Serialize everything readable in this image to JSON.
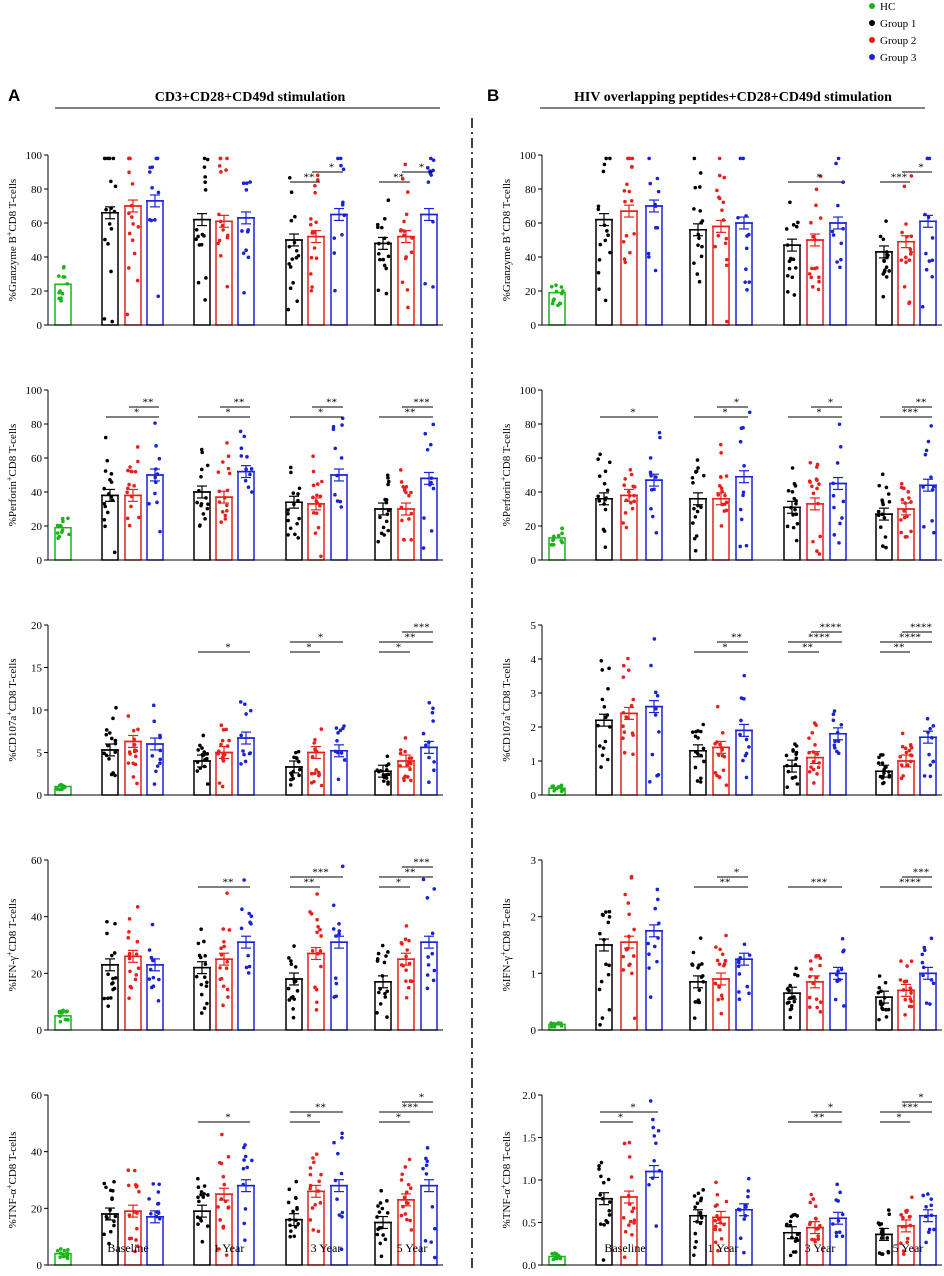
{
  "legend": [
    {
      "name": "HC",
      "color": "#18b418"
    },
    {
      "name": "Group 1",
      "color": "#000000"
    },
    {
      "name": "Group 2",
      "color": "#e8201c"
    },
    {
      "name": "Group 3",
      "color": "#1a22d8"
    }
  ],
  "panels": [
    {
      "letter": "A",
      "title": "CD3+CD28+CD49d stimulation"
    },
    {
      "letter": "B",
      "title": "HIV overlapping peptides+CD28+CD49d stimulation"
    }
  ],
  "x_categories": [
    "Baseline",
    "1 Year",
    "3 Year",
    "5 Year"
  ],
  "chart_data": [
    {
      "id": "A1",
      "type": "bar",
      "panel": "A",
      "ylabel_main": "%Granzyme B",
      "ylabel_sup": "+",
      "ylabel_rest": "CD8 T-cells",
      "ylim": [
        0,
        100
      ],
      "ticks": [
        0,
        20,
        40,
        60,
        80,
        100
      ],
      "hc_mean": 24,
      "groups": [
        [
          66,
          70,
          73
        ],
        [
          62,
          61,
          63
        ],
        [
          50,
          52,
          65
        ],
        [
          48,
          52,
          65
        ]
      ],
      "brackets": [
        [
          2,
          1,
          2,
          "**",
          0
        ],
        [
          2,
          2,
          3,
          "*",
          1
        ],
        [
          3,
          1,
          2,
          "**",
          0
        ],
        [
          3,
          2,
          3,
          "*",
          1
        ]
      ]
    },
    {
      "id": "B1",
      "type": "bar",
      "panel": "B",
      "ylabel_main": "%Granzyme B",
      "ylabel_sup": "+",
      "ylabel_rest": "CD8 T-cells",
      "ylim": [
        0,
        100
      ],
      "ticks": [
        0,
        20,
        40,
        60,
        80,
        100
      ],
      "hc_mean": 19,
      "groups": [
        [
          62,
          67,
          70
        ],
        [
          56,
          58,
          60
        ],
        [
          47,
          50,
          60
        ],
        [
          43,
          49,
          61
        ]
      ],
      "brackets": [
        [
          2,
          1,
          3,
          "*",
          0
        ],
        [
          3,
          1,
          2,
          "***",
          0
        ],
        [
          3,
          2,
          3,
          "*",
          1
        ]
      ]
    },
    {
      "id": "A2",
      "type": "bar",
      "panel": "A",
      "ylabel_main": "%Perforin",
      "ylabel_sup": "+",
      "ylabel_rest": "CD8 T-cells",
      "ylim": [
        0,
        100
      ],
      "ticks": [
        0,
        20,
        40,
        60,
        80,
        100
      ],
      "hc_mean": 19,
      "groups": [
        [
          38,
          38,
          50
        ],
        [
          40,
          37,
          52
        ],
        [
          34,
          33,
          50
        ],
        [
          30,
          30,
          48
        ]
      ],
      "brackets": [
        [
          0,
          1,
          3,
          "*",
          0
        ],
        [
          0,
          2,
          3,
          "**",
          1
        ],
        [
          1,
          1,
          3,
          "*",
          0
        ],
        [
          1,
          2,
          3,
          "**",
          1
        ],
        [
          2,
          1,
          3,
          "*",
          0
        ],
        [
          2,
          2,
          3,
          "**",
          1
        ],
        [
          3,
          1,
          3,
          "**",
          0
        ],
        [
          3,
          2,
          3,
          "***",
          1
        ]
      ]
    },
    {
      "id": "B2",
      "type": "bar",
      "panel": "B",
      "ylabel_main": "%Perforin",
      "ylabel_sup": "+",
      "ylabel_rest": "CD8 T-cells",
      "ylim": [
        0,
        100
      ],
      "ticks": [
        0,
        20,
        40,
        60,
        80,
        100
      ],
      "hc_mean": 13,
      "groups": [
        [
          36,
          38,
          47
        ],
        [
          36,
          36,
          49
        ],
        [
          31,
          33,
          45
        ],
        [
          27,
          30,
          44
        ]
      ],
      "brackets": [
        [
          0,
          1,
          3,
          "*",
          0
        ],
        [
          1,
          1,
          3,
          "*",
          0
        ],
        [
          1,
          2,
          3,
          "*",
          1
        ],
        [
          2,
          1,
          3,
          "*",
          0
        ],
        [
          2,
          2,
          3,
          "*",
          1
        ],
        [
          3,
          1,
          3,
          "***",
          0
        ],
        [
          3,
          2,
          3,
          "**",
          1
        ]
      ]
    },
    {
      "id": "A3",
      "type": "bar",
      "panel": "A",
      "ylabel_main": "%CD107a",
      "ylabel_sup": "+",
      "ylabel_rest": "CD8 T-cells",
      "ylim": [
        0,
        20
      ],
      "ticks": [
        0,
        5,
        10,
        15,
        20
      ],
      "hc_mean": 1,
      "groups": [
        [
          5.3,
          6.3,
          6.0
        ],
        [
          4.0,
          5.0,
          6.7
        ],
        [
          3.3,
          5.0,
          5.2
        ],
        [
          2.8,
          4.0,
          5.6
        ]
      ],
      "brackets": [
        [
          1,
          1,
          3,
          "*",
          0
        ],
        [
          2,
          1,
          2,
          "*",
          0
        ],
        [
          2,
          1,
          3,
          "*",
          1
        ],
        [
          3,
          1,
          2,
          "*",
          0
        ],
        [
          3,
          1,
          3,
          "**",
          1
        ],
        [
          3,
          2,
          3,
          "***",
          2
        ]
      ]
    },
    {
      "id": "B3",
      "type": "bar",
      "panel": "B",
      "ylabel_main": "%CD107a",
      "ylabel_sup": "+",
      "ylabel_rest": "CD8 T-cells",
      "ylim": [
        0,
        5
      ],
      "ticks": [
        0,
        1,
        2,
        3,
        4,
        5
      ],
      "hc_mean": 0.2,
      "groups": [
        [
          2.2,
          2.4,
          2.6
        ],
        [
          1.3,
          1.4,
          1.9
        ],
        [
          0.85,
          1.1,
          1.8
        ],
        [
          0.7,
          1.0,
          1.7
        ]
      ],
      "brackets": [
        [
          1,
          1,
          3,
          "*",
          0
        ],
        [
          1,
          2,
          3,
          "**",
          1
        ],
        [
          2,
          1,
          2,
          "**",
          0
        ],
        [
          2,
          1,
          3,
          "****",
          1
        ],
        [
          2,
          2,
          3,
          "****",
          2
        ],
        [
          3,
          1,
          2,
          "**",
          0
        ],
        [
          3,
          1,
          3,
          "****",
          1
        ],
        [
          3,
          2,
          3,
          "****",
          2
        ]
      ]
    },
    {
      "id": "A4",
      "type": "bar",
      "panel": "A",
      "ylabel_main": "%IFN-γ",
      "ylabel_sup": "+",
      "ylabel_rest": "CD8 T-cells",
      "ylim": [
        0,
        60
      ],
      "ticks": [
        0,
        20,
        40,
        60
      ],
      "hc_mean": 5,
      "groups": [
        [
          23,
          26,
          23
        ],
        [
          22,
          25,
          31
        ],
        [
          18,
          27,
          31
        ],
        [
          17,
          25,
          31
        ]
      ],
      "brackets": [
        [
          1,
          1,
          3,
          "**",
          0
        ],
        [
          2,
          1,
          2,
          "**",
          0
        ],
        [
          2,
          1,
          3,
          "***",
          1
        ],
        [
          3,
          1,
          2,
          "*",
          0
        ],
        [
          3,
          1,
          3,
          "**",
          1
        ],
        [
          3,
          2,
          3,
          "***",
          2
        ]
      ]
    },
    {
      "id": "B4",
      "type": "bar",
      "panel": "B",
      "ylabel_main": "%IFN-γ",
      "ylabel_sup": "+",
      "ylabel_rest": "CD8 T-cells",
      "ylim": [
        0,
        3
      ],
      "ticks": [
        0,
        1,
        2,
        3
      ],
      "hc_mean": 0.1,
      "groups": [
        [
          1.5,
          1.55,
          1.75
        ],
        [
          0.85,
          0.9,
          1.25
        ],
        [
          0.65,
          0.85,
          1.0
        ],
        [
          0.58,
          0.7,
          1.0
        ]
      ],
      "brackets": [
        [
          1,
          1,
          3,
          "**",
          0
        ],
        [
          1,
          2,
          3,
          "*",
          1
        ],
        [
          2,
          1,
          3,
          "***",
          0
        ],
        [
          3,
          1,
          3,
          "****",
          0
        ],
        [
          3,
          2,
          3,
          "***",
          1
        ]
      ]
    },
    {
      "id": "A5",
      "type": "bar",
      "panel": "A",
      "ylabel_main": "%TNF-α",
      "ylabel_sup": "+",
      "ylabel_rest": "CD8 T-cells",
      "ylim": [
        0,
        60
      ],
      "ticks": [
        0,
        20,
        40,
        60
      ],
      "hc_mean": 4,
      "groups": [
        [
          18,
          19,
          17
        ],
        [
          19,
          25,
          28
        ],
        [
          16,
          26,
          28
        ],
        [
          15,
          23,
          28
        ]
      ],
      "brackets": [
        [
          1,
          1,
          3,
          "*",
          0
        ],
        [
          2,
          1,
          2,
          "*",
          0
        ],
        [
          2,
          1,
          3,
          "**",
          1
        ],
        [
          3,
          1,
          2,
          "*",
          0
        ],
        [
          3,
          1,
          3,
          "***",
          1
        ],
        [
          3,
          2,
          3,
          "*",
          2
        ]
      ]
    },
    {
      "id": "B5",
      "type": "bar",
      "panel": "B",
      "ylabel_main": "%TNF-α",
      "ylabel_sup": "+",
      "ylabel_rest": "CD8 T-cells",
      "ylim": [
        0,
        2
      ],
      "ticks": [
        "0.0",
        "0.5",
        "1.0",
        "1.5",
        "2.0"
      ],
      "hc_mean": 0.1,
      "groups": [
        [
          0.78,
          0.8,
          1.1
        ],
        [
          0.58,
          0.56,
          0.65
        ],
        [
          0.38,
          0.44,
          0.55
        ],
        [
          0.36,
          0.46,
          0.58
        ]
      ],
      "brackets": [
        [
          0,
          1,
          2,
          "*",
          0
        ],
        [
          0,
          1,
          3,
          "*",
          1
        ],
        [
          2,
          1,
          3,
          "**",
          0
        ],
        [
          2,
          2,
          3,
          "*",
          1
        ],
        [
          3,
          1,
          2,
          "*",
          0
        ],
        [
          3,
          1,
          3,
          "***",
          1
        ],
        [
          3,
          2,
          3,
          "*",
          2
        ]
      ]
    }
  ]
}
